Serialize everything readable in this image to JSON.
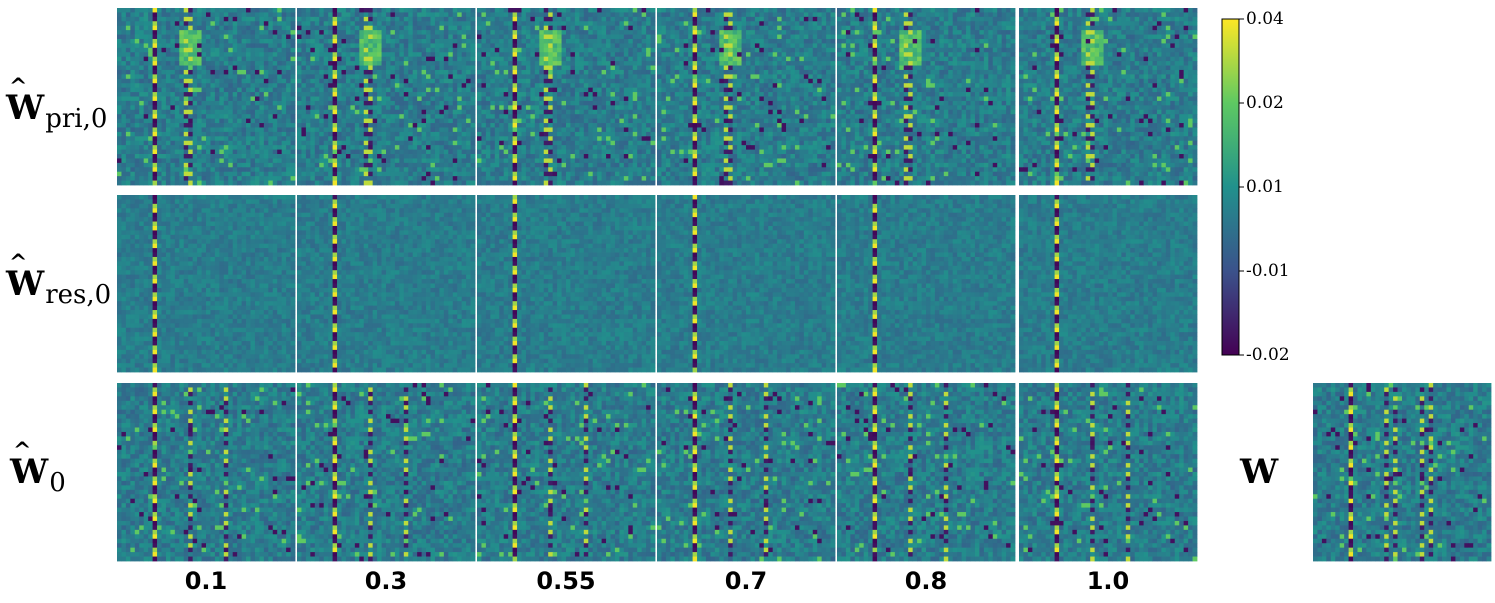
{
  "chart_data": {
    "type": "heatmap",
    "row_labels": [
      {
        "main": "W",
        "sub": "pri,0",
        "hat": "^"
      },
      {
        "main": "W",
        "sub": "res,0",
        "hat": "^"
      },
      {
        "main": "W",
        "sub": "0",
        "hat": "^"
      }
    ],
    "column_labels": [
      "0.1",
      "0.3",
      "0.55",
      "0.7",
      "0.8",
      "1.0"
    ],
    "extra_panel_label": "W",
    "colormap": "viridis",
    "colorbar": {
      "min": -0.02,
      "max": 0.04,
      "ticks": [
        "0.04",
        "0.02",
        "0.01",
        "-0.01",
        "-0.02"
      ],
      "colors": [
        "#440154",
        "#3b528b",
        "#21918c",
        "#5ec962",
        "#fde725"
      ]
    },
    "matrix_size": 40,
    "notable_columns": {
      "pri": [
        8,
        15,
        16
      ],
      "res": [
        8
      ],
      "full": [
        8,
        16,
        24
      ],
      "W": [
        8,
        16,
        18,
        24,
        26
      ]
    }
  }
}
